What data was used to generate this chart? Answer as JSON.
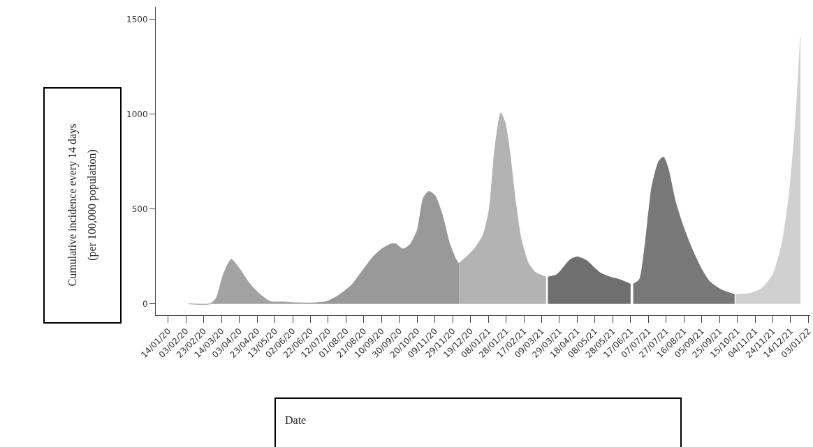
{
  "chart_data": {
    "type": "area",
    "xlabel": "Date",
    "ylabel": "Cumulative incidence every 14 days\n(per 100,000 population)",
    "xlim": [
      "2019-12-31",
      "2022-01-05"
    ],
    "ylim": [
      -60,
      1565
    ],
    "yticks": [
      0,
      500,
      1000,
      1500
    ],
    "xticks": [
      {
        "value": "2020-01-14",
        "label": "14/01/20"
      },
      {
        "value": "2020-02-03",
        "label": "03/02/20"
      },
      {
        "value": "2020-02-23",
        "label": "23/02/20"
      },
      {
        "value": "2020-03-14",
        "label": "14/03/20"
      },
      {
        "value": "2020-04-03",
        "label": "03/04/20"
      },
      {
        "value": "2020-04-23",
        "label": "23/04/20"
      },
      {
        "value": "2020-05-13",
        "label": "13/05/20"
      },
      {
        "value": "2020-06-02",
        "label": "02/06/20"
      },
      {
        "value": "2020-06-22",
        "label": "22/06/20"
      },
      {
        "value": "2020-07-12",
        "label": "12/07/20"
      },
      {
        "value": "2020-08-01",
        "label": "01/08/20"
      },
      {
        "value": "2020-08-21",
        "label": "21/08/20"
      },
      {
        "value": "2020-09-10",
        "label": "10/09/20"
      },
      {
        "value": "2020-09-30",
        "label": "30/09/20"
      },
      {
        "value": "2020-10-20",
        "label": "20/10/20"
      },
      {
        "value": "2020-11-09",
        "label": "09/11/20"
      },
      {
        "value": "2020-11-29",
        "label": "29/11/20"
      },
      {
        "value": "2020-12-19",
        "label": "19/12/20"
      },
      {
        "value": "2021-01-08",
        "label": "08/01/21"
      },
      {
        "value": "2021-01-28",
        "label": "28/01/21"
      },
      {
        "value": "2021-02-17",
        "label": "17/02/21"
      },
      {
        "value": "2021-03-09",
        "label": "09/03/21"
      },
      {
        "value": "2021-03-29",
        "label": "29/03/21"
      },
      {
        "value": "2021-04-18",
        "label": "18/04/21"
      },
      {
        "value": "2021-05-08",
        "label": "08/05/21"
      },
      {
        "value": "2021-05-28",
        "label": "28/05/21"
      },
      {
        "value": "2021-06-17",
        "label": "17/06/21"
      },
      {
        "value": "2021-07-07",
        "label": "07/07/21"
      },
      {
        "value": "2021-07-27",
        "label": "27/07/21"
      },
      {
        "value": "2021-08-16",
        "label": "16/08/21"
      },
      {
        "value": "2021-09-05",
        "label": "05/09/21"
      },
      {
        "value": "2021-09-25",
        "label": "25/09/21"
      },
      {
        "value": "2021-10-15",
        "label": "15/10/21"
      },
      {
        "value": "2021-11-04",
        "label": "04/11/21"
      },
      {
        "value": "2021-11-24",
        "label": "24/11/21"
      },
      {
        "value": "2021-12-14",
        "label": "14/12/21"
      },
      {
        "value": "2022-01-03",
        "label": "03/01/22"
      }
    ],
    "series": [
      {
        "color": "#a3a3a3",
        "x": [
          "2020-02-06",
          "2020-03-01",
          "2020-03-08",
          "2020-03-16",
          "2020-03-25",
          "2020-04-04",
          "2020-04-14",
          "2020-04-25",
          "2020-05-08",
          "2020-05-23",
          "2020-06-05",
          "2020-06-21"
        ],
        "values": [
          0,
          0,
          30,
          155,
          235,
          180,
          110,
          55,
          12,
          10,
          6,
          4
        ]
      },
      {
        "color": "#999999",
        "x": [
          "2020-06-21",
          "2020-07-10",
          "2020-07-23",
          "2020-08-07",
          "2020-08-20",
          "2020-08-31",
          "2020-09-10",
          "2020-09-21",
          "2020-09-26",
          "2020-10-04",
          "2020-10-12",
          "2020-10-20",
          "2020-10-27",
          "2020-11-02",
          "2020-11-09",
          "2020-11-17",
          "2020-11-25",
          "2020-12-02",
          "2020-12-06"
        ],
        "values": [
          4,
          12,
          43,
          98,
          178,
          246,
          289,
          317,
          316,
          289,
          313,
          387,
          559,
          593,
          571,
          473,
          325,
          240,
          210
        ]
      },
      {
        "color": "#b3b3b3",
        "x": [
          "2020-12-06",
          "2020-12-14",
          "2020-12-23",
          "2021-01-02",
          "2021-01-09",
          "2021-01-15",
          "2021-01-22",
          "2021-01-27",
          "2021-02-01",
          "2021-02-07",
          "2021-02-14",
          "2021-02-22",
          "2021-03-02",
          "2021-03-14"
        ],
        "values": [
          215,
          246,
          288,
          362,
          497,
          804,
          1007,
          952,
          805,
          559,
          338,
          215,
          166,
          141
        ]
      },
      {
        "color": "#6f6f6f",
        "x": [
          "2021-03-16",
          "2021-03-26",
          "2021-04-02",
          "2021-04-10",
          "2021-04-18",
          "2021-04-29",
          "2021-05-06",
          "2021-05-14",
          "2021-05-25",
          "2021-06-04",
          "2021-06-17"
        ],
        "values": [
          141,
          154,
          190,
          233,
          248,
          227,
          196,
          163,
          141,
          129,
          104
        ]
      },
      {
        "color": "#787878",
        "x": [
          "2021-06-20",
          "2021-06-27",
          "2021-07-03",
          "2021-07-11",
          "2021-07-19",
          "2021-07-24",
          "2021-07-29",
          "2021-08-06",
          "2021-08-14",
          "2021-08-24",
          "2021-09-04",
          "2021-09-14",
          "2021-09-27",
          "2021-10-12"
        ],
        "values": [
          104,
          129,
          301,
          620,
          755,
          774,
          718,
          546,
          424,
          301,
          190,
          117,
          74,
          49
        ]
      },
      {
        "color": "#d0d0d0",
        "x": [
          "2021-10-13",
          "2021-10-29",
          "2021-11-11",
          "2021-11-24",
          "2021-12-04",
          "2021-12-12",
          "2021-12-19",
          "2021-12-23",
          "2021-12-25"
        ],
        "values": [
          49,
          55,
          80,
          154,
          313,
          559,
          927,
          1234,
          1406
        ]
      }
    ]
  }
}
